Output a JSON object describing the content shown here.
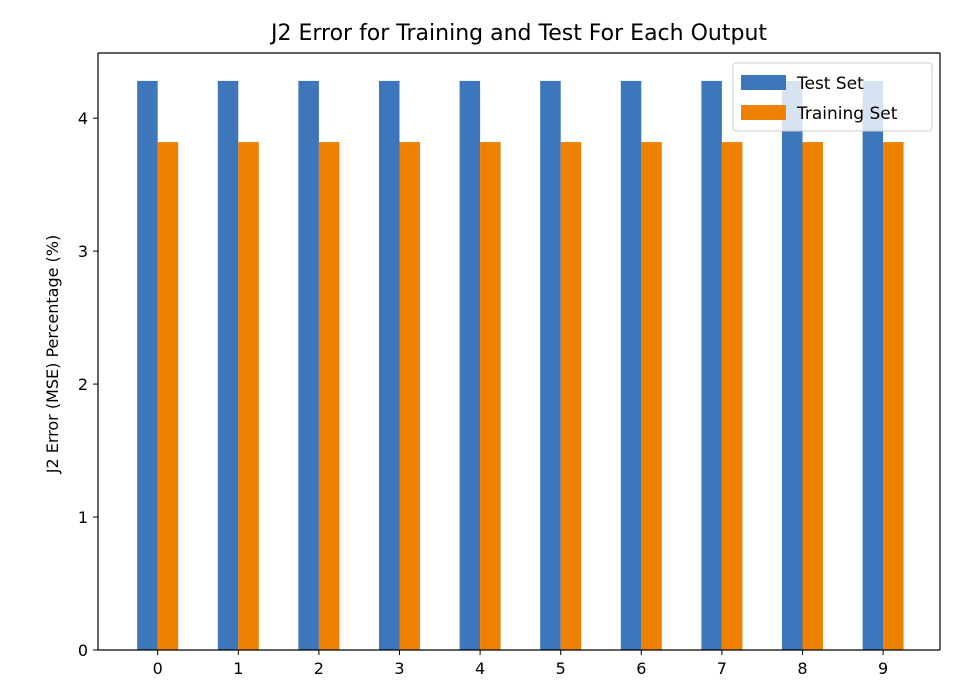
{
  "chart_data": {
    "type": "bar",
    "title": "J2 Error for Training and Test For Each Output",
    "xlabel": "",
    "ylabel": "J2 Error (MSE) Percentage (%)",
    "categories": [
      "0",
      "1",
      "2",
      "3",
      "4",
      "5",
      "6",
      "7",
      "8",
      "9"
    ],
    "series": [
      {
        "name": "Test Set",
        "color": "#3d76bb",
        "values": [
          4.28,
          4.28,
          4.28,
          4.28,
          4.28,
          4.28,
          4.28,
          4.28,
          4.28,
          4.28
        ]
      },
      {
        "name": "Training Set",
        "color": "#ee8100",
        "values": [
          3.82,
          3.82,
          3.82,
          3.82,
          3.82,
          3.82,
          3.82,
          3.82,
          3.82,
          3.82
        ]
      }
    ],
    "yticks": [
      "0",
      "1",
      "2",
      "3",
      "4"
    ],
    "ylim": [
      0,
      4.49
    ],
    "grid": false,
    "legend": "top-right"
  }
}
